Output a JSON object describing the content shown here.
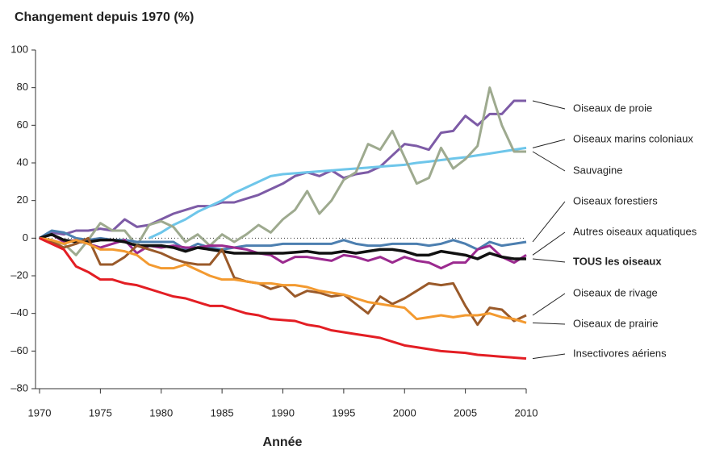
{
  "chart_data": {
    "type": "line",
    "title": "Changement depuis 1970 (%)",
    "x_label": "Année",
    "x": [
      1970,
      1971,
      1972,
      1973,
      1974,
      1975,
      1976,
      1977,
      1978,
      1979,
      1980,
      1981,
      1982,
      1983,
      1984,
      1985,
      1986,
      1987,
      1988,
      1989,
      1990,
      1991,
      1992,
      1993,
      1994,
      1995,
      1996,
      1997,
      1998,
      1999,
      2000,
      2001,
      2002,
      2003,
      2004,
      2005,
      2006,
      2007,
      2008,
      2009,
      2010
    ],
    "xlim": [
      1970,
      2010
    ],
    "xticks": [
      1970,
      1975,
      1980,
      1985,
      1990,
      1995,
      2000,
      2005,
      2010
    ],
    "ylim": [
      -80,
      100
    ],
    "yticks": [
      {
        "value": -80,
        "label": "–80"
      },
      {
        "value": -60,
        "label": "–60"
      },
      {
        "value": -40,
        "label": "–40"
      },
      {
        "value": -20,
        "label": "–20"
      },
      0,
      20,
      40,
      60,
      80,
      100
    ],
    "series": [
      {
        "name": "Oiseaux de proie",
        "color": "#7d5ba6",
        "values": [
          0,
          3,
          2,
          4,
          4,
          5,
          4,
          10,
          6,
          7,
          10,
          13,
          15,
          17,
          17,
          19,
          19,
          21,
          23,
          26,
          29,
          33,
          35,
          33,
          36,
          32,
          34,
          35,
          38,
          44,
          50,
          49,
          47,
          56,
          57,
          65,
          60,
          66,
          66,
          73,
          73
        ]
      },
      {
        "name": "Oiseaux marins coloniaux",
        "color": "#6ec6ea",
        "values": [
          null,
          null,
          null,
          null,
          null,
          null,
          null,
          null,
          null,
          0,
          3,
          7,
          10,
          14,
          17,
          20,
          24,
          27,
          30,
          33,
          34,
          34.5,
          35,
          35.5,
          36,
          36.5,
          37,
          37.5,
          38,
          38.5,
          39,
          40,
          40.7,
          41.5,
          42.3,
          43,
          44,
          45,
          46,
          47,
          48
        ]
      },
      {
        "name": "Sauvagine",
        "color": "#9eaa8f",
        "values": [
          0,
          -2,
          -3,
          -9,
          -1,
          8,
          4,
          4,
          -4,
          7,
          9,
          6,
          -2,
          2,
          -4,
          2,
          -2,
          2,
          7,
          3,
          10,
          15,
          25,
          13,
          20,
          31,
          35,
          50,
          47,
          57,
          43,
          29,
          32,
          48,
          37,
          42,
          49,
          80,
          60,
          46,
          46
        ]
      },
      {
        "name": "Oiseaux forestiers",
        "color": "#4c7fb0",
        "values": [
          0,
          4,
          3,
          0,
          -1,
          0,
          -1,
          -1,
          -2,
          -2,
          -2,
          -2,
          -6,
          -3,
          -5,
          -6,
          -5,
          -4,
          -4,
          -4,
          -3,
          -3,
          -3,
          -3,
          -3,
          -1,
          -3,
          -4,
          -4,
          -3,
          -3,
          -3,
          -4,
          -3,
          -1,
          -3,
          -6,
          -2,
          -4,
          -3,
          -2
        ]
      },
      {
        "name": "Autres oiseaux aquatiques",
        "color": "#9b2a8f",
        "values": [
          0,
          2,
          -2,
          -1,
          -3,
          -5,
          -3,
          -1,
          -8,
          -4,
          -5,
          -4,
          -5,
          -5,
          -4,
          -4,
          -5,
          -6,
          -8,
          -9,
          -13,
          -10,
          -10,
          -11,
          -12,
          -9,
          -10,
          -12,
          -10,
          -13,
          -10,
          -12,
          -13,
          -16,
          -13,
          -13,
          -6,
          -4,
          -10,
          -13,
          -9
        ]
      },
      {
        "name": "TOUS les oiseaux",
        "color": "#111111",
        "values": [
          0,
          2,
          -1,
          -2,
          -2,
          -1,
          -1,
          -2,
          -4,
          -4,
          -4,
          -5,
          -7,
          -5,
          -6,
          -7,
          -8,
          -8,
          -8,
          -8,
          -8,
          -7.5,
          -7,
          -8,
          -8,
          -7,
          -8,
          -7,
          -6,
          -6,
          -7,
          -9,
          -9,
          -7,
          -8,
          -9,
          -11,
          -8,
          -10,
          -11,
          -11
        ]
      },
      {
        "name": "Oiseaux de rivage",
        "color": "#9a5a2a",
        "values": [
          0,
          -2,
          -5,
          -3,
          0,
          -14,
          -14,
          -10,
          -4,
          -6,
          -8,
          -11,
          -13,
          -14,
          -14,
          -6,
          -21,
          -23,
          -24,
          -27,
          -25,
          -31,
          -28,
          -29,
          -31,
          -30,
          -35,
          -40,
          -31,
          -35,
          -32,
          -28,
          -24,
          -25,
          -24,
          -36,
          -46,
          -37,
          -38,
          -44,
          -41
        ]
      },
      {
        "name": "Oiseaux de prairie",
        "color": "#f39a30",
        "values": [
          0,
          -1,
          -3,
          -1,
          -3,
          -6,
          -6,
          -7,
          -9,
          -14,
          -16,
          -16,
          -14,
          -17,
          -20,
          -22,
          -22,
          -23,
          -24,
          -24,
          -25,
          -25,
          -26,
          -28,
          -29,
          -30,
          -32,
          -34,
          -35,
          -36,
          -37,
          -43,
          -42,
          -41,
          -42,
          -41,
          -41,
          -40,
          -42,
          -43,
          -45
        ]
      },
      {
        "name": "Insectivores aériens",
        "color": "#e31e24",
        "values": [
          0,
          -3,
          -6,
          -15,
          -18,
          -22,
          -22,
          -24,
          -25,
          -27,
          -29,
          -31,
          -32,
          -34,
          -36,
          -36,
          -38,
          -40,
          -41,
          -43,
          -43.5,
          -44,
          -46,
          -47,
          -49,
          -50,
          -51,
          -52,
          -53,
          -55,
          -57,
          -58,
          -59,
          -60,
          -60.5,
          -61,
          -62,
          -62.5,
          -63,
          -63.5,
          -64
        ]
      }
    ]
  }
}
